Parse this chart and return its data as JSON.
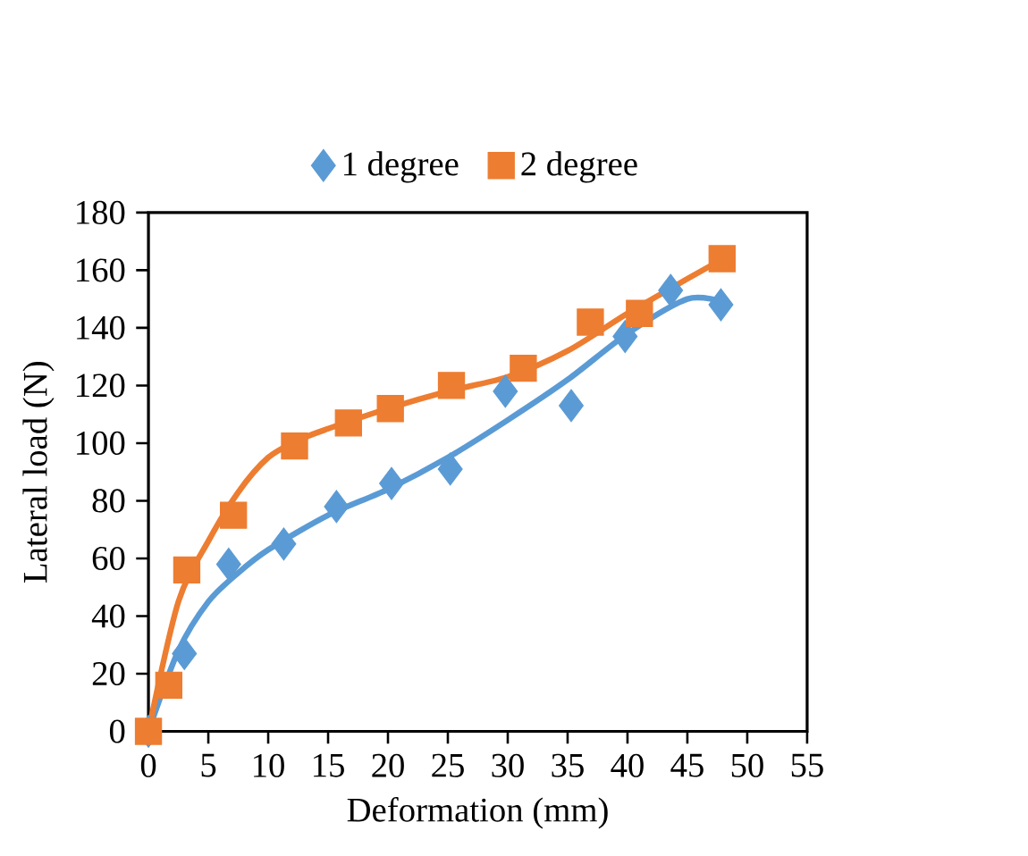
{
  "chart_data": {
    "type": "scatter",
    "xlabel": "Deformation (mm)",
    "ylabel": "Lateral load (N)",
    "xlim": [
      0,
      55
    ],
    "ylim": [
      0,
      180
    ],
    "xticks": [
      0,
      5,
      10,
      15,
      20,
      25,
      30,
      35,
      40,
      45,
      50,
      55
    ],
    "yticks": [
      0,
      20,
      40,
      60,
      80,
      100,
      120,
      140,
      160,
      180
    ],
    "grid": false,
    "legend": "top",
    "series": [
      {
        "name": "1 degree",
        "color": "#5b9bd5",
        "marker": "diamond",
        "x": [
          0,
          3.0,
          6.7,
          11.3,
          15.7,
          20.3,
          25.2,
          29.8,
          35.3,
          39.8,
          43.6,
          47.8
        ],
        "values": [
          0,
          27,
          58,
          65,
          78,
          86,
          91,
          118,
          113,
          137,
          153,
          148
        ]
      },
      {
        "name": "2 degree",
        "color": "#ed7d31",
        "marker": "square",
        "x": [
          0,
          1.7,
          3.2,
          7.1,
          12.2,
          16.7,
          20.2,
          25.3,
          31.3,
          36.9,
          41,
          47.9
        ],
        "values": [
          0,
          16,
          56,
          75,
          99,
          107,
          112,
          120,
          126,
          142,
          145,
          164
        ]
      },
      {
        "type": "line",
        "color": "#5b9bd5",
        "marker": "none",
        "x": [
          0,
          2.5,
          5,
          7.5,
          10,
          15,
          20,
          25,
          30,
          35,
          40,
          45,
          48
        ],
        "values": [
          0,
          28,
          45,
          55,
          63,
          75,
          84,
          95,
          108,
          122,
          138,
          150,
          149
        ]
      },
      {
        "type": "line",
        "color": "#ed7d31",
        "marker": "none",
        "x": [
          0,
          2.5,
          5,
          7.5,
          10,
          12.5,
          15,
          20,
          25,
          30,
          35,
          40,
          45,
          48
        ],
        "values": [
          0,
          45,
          66,
          83,
          95,
          101,
          105,
          112,
          118,
          123,
          132,
          145,
          157,
          164
        ]
      }
    ]
  }
}
